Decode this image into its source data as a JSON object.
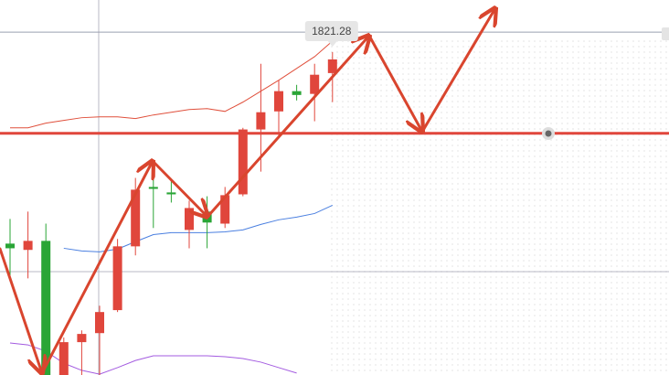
{
  "chart_data": {
    "type": "candlestick",
    "ylim": [
      1696,
      1833
    ],
    "up_color": "#e0463c",
    "down_color": "#2aa536",
    "open": [
      1744,
      1741.7,
      1745,
      1694.7,
      1708,
      1711.3,
      1719.7,
      1743,
      1764.7,
      1762.7,
      1749,
      1755.7,
      1751.3,
      1762,
      1785.7,
      1792.3,
      1799.7,
      1798.7,
      1806.3
    ],
    "high": [
      1753,
      1755.7,
      1751.3,
      1709.7,
      1712.3,
      1721.3,
      1745.7,
      1768,
      1773,
      1767,
      1759.7,
      1761.3,
      1764.7,
      1786.3,
      1809.7,
      1803.7,
      1802,
      1809.7,
      1814
    ],
    "low": [
      1731.3,
      1731.3,
      1693,
      1693,
      1693,
      1694.7,
      1719,
      1739.7,
      1749.7,
      1759,
      1742.3,
      1742.3,
      1749.7,
      1761.3,
      1770.3,
      1783,
      1796.3,
      1788.7,
      1795.7
    ],
    "close": [
      1742.3,
      1745,
      1694.7,
      1708,
      1711,
      1719,
      1743,
      1763.7,
      1764,
      1762,
      1757,
      1751.7,
      1761.7,
      1785.7,
      1792,
      1799.7,
      1798.3,
      1805.7,
      1811.3
    ],
    "series": [
      {
        "color": "#e0503c",
        "values": [
          1786.3,
          1786.3,
          1788,
          1789,
          1790,
          1790.3,
          1790.3,
          1789.7,
          1791,
          1792,
          1793,
          1793.3,
          1792.3,
          1795.7,
          1799.7,
          1803.7,
          1808,
          1812.3,
          1818
        ]
      },
      {
        "color": "#4a7fe0",
        "values": [
          null,
          null,
          null,
          1742.3,
          1741.3,
          1741,
          1742,
          1744.7,
          1747.3,
          1748,
          1748,
          1748,
          1748.3,
          1749,
          1751,
          1752.7,
          1753.7,
          1755,
          1758
        ]
      },
      {
        "color": "#a35be0",
        "values": [
          1707.7,
          1707,
          1704.7,
          1700.3,
          1697.7,
          1696.3,
          1698.7,
          1701.3,
          1703,
          1703,
          1703,
          1703,
          1702.7,
          1702,
          1700.7,
          1698.7,
          1696.7,
          null,
          null
        ]
      }
    ],
    "support_level": 1784.3,
    "support_color": "#e0463c",
    "last_price": 1821.28
  }
}
